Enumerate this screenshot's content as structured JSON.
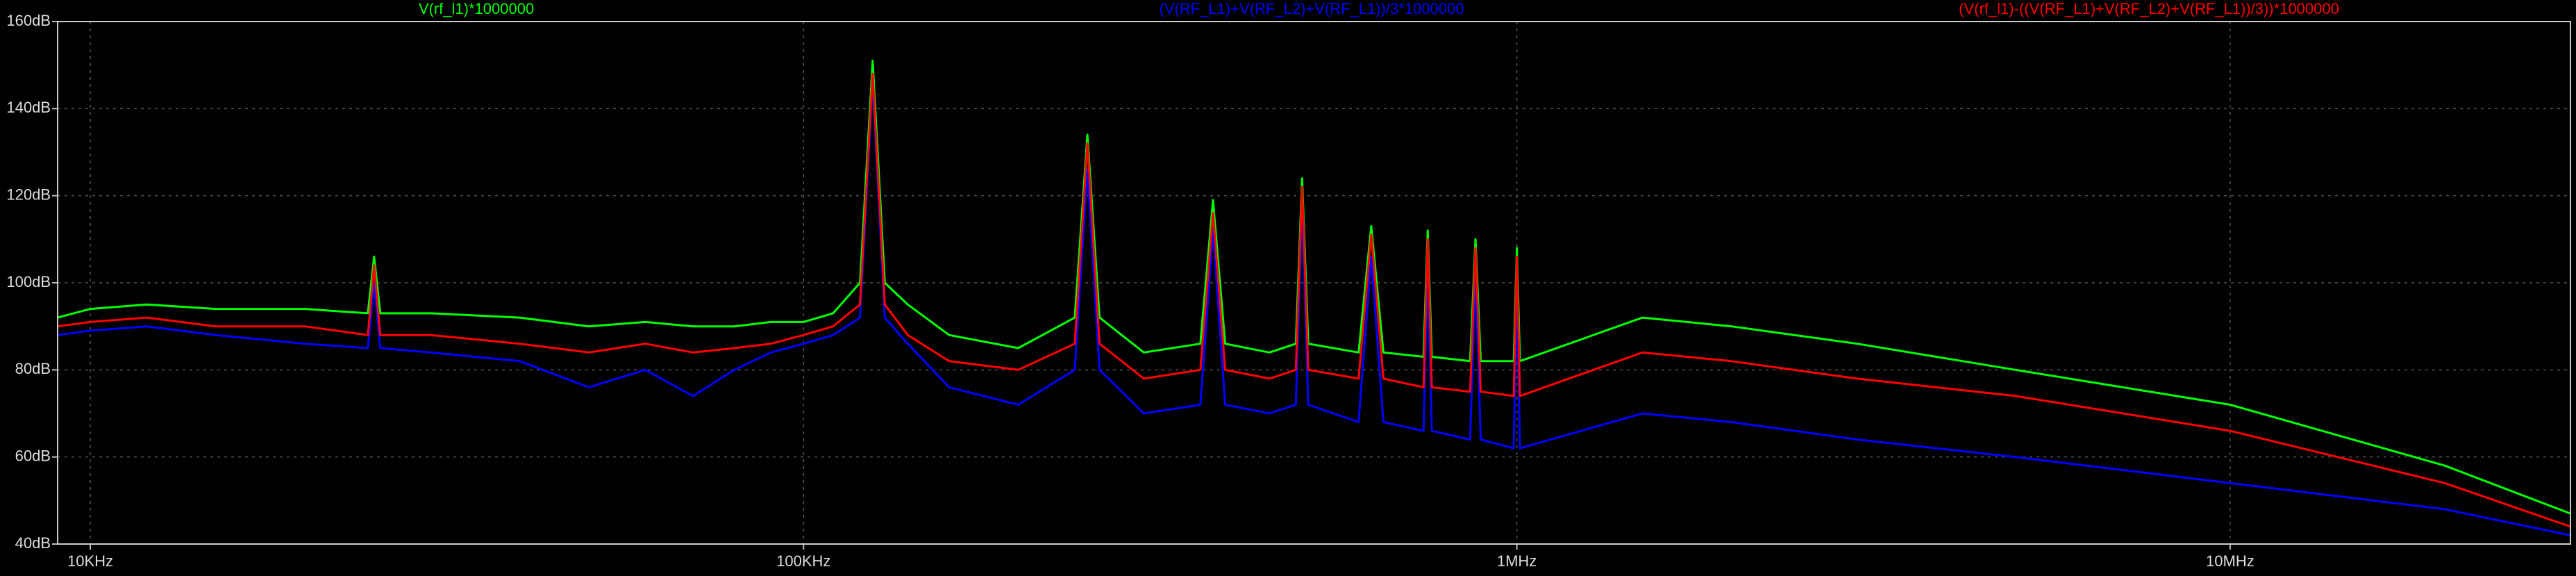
{
  "chart_data": {
    "type": "line",
    "log_x": true,
    "grid": true,
    "xlim": [
      9000,
      30000000
    ],
    "ylim": [
      40,
      160
    ],
    "xticks": [
      {
        "value": 10000,
        "label": "10KHz"
      },
      {
        "value": 100000,
        "label": "100KHz"
      },
      {
        "value": 1000000,
        "label": "1MHz"
      },
      {
        "value": 10000000,
        "label": "10MHz"
      }
    ],
    "yticks": [
      {
        "value": 40,
        "label": "40dB"
      },
      {
        "value": 60,
        "label": "60dB"
      },
      {
        "value": 80,
        "label": "80dB"
      },
      {
        "value": 100,
        "label": "100dB"
      },
      {
        "value": 120,
        "label": "120dB"
      },
      {
        "value": 140,
        "label": "140dB"
      },
      {
        "value": 160,
        "label": "160dB"
      }
    ],
    "x": [
      9000,
      10000,
      12000,
      15000,
      20000,
      24500,
      25000,
      25500,
      30000,
      40000,
      50000,
      60000,
      70000,
      80000,
      90000,
      100000,
      110000,
      120000,
      125000,
      130000,
      140000,
      160000,
      200000,
      240000,
      250000,
      260000,
      300000,
      360000,
      375000,
      390000,
      450000,
      490000,
      500000,
      510000,
      600000,
      625000,
      650000,
      740000,
      750000,
      760000,
      860000,
      875000,
      890000,
      990000,
      1000000,
      1010000,
      1500000,
      2000000,
      3000000,
      5000000,
      10000000,
      20000000,
      30000000
    ],
    "series": [
      {
        "name": "V(rf_l1)*1000000",
        "color": "#00ff00",
        "values": [
          92,
          94,
          95,
          94,
          94,
          93,
          106,
          93,
          93,
          92,
          90,
          91,
          90,
          90,
          91,
          91,
          93,
          100,
          151,
          100,
          95,
          88,
          85,
          92,
          134,
          92,
          84,
          86,
          119,
          86,
          84,
          86,
          124,
          86,
          84,
          113,
          84,
          83,
          112,
          83,
          82,
          110,
          82,
          82,
          108,
          82,
          92,
          90,
          86,
          80,
          72,
          58,
          47
        ]
      },
      {
        "name": "(V(RF_L1)+V(RF_L2)+V(RF_L1))/3*1000000",
        "color": "#0000ff",
        "values": [
          88,
          89,
          90,
          88,
          86,
          85,
          100,
          85,
          84,
          82,
          76,
          80,
          74,
          80,
          84,
          86,
          88,
          92,
          146,
          92,
          86,
          76,
          72,
          80,
          126,
          80,
          70,
          72,
          112,
          72,
          70,
          72,
          118,
          72,
          68,
          106,
          68,
          66,
          104,
          66,
          64,
          102,
          64,
          62,
          100,
          62,
          70,
          68,
          64,
          60,
          54,
          48,
          42
        ]
      },
      {
        "name": "(V(rf_l1)-((V(RF_L1)+V(RF_L2)+V(RF_L1))/3))*1000000",
        "color": "#ff0000",
        "values": [
          90,
          91,
          92,
          90,
          90,
          88,
          104,
          88,
          88,
          86,
          84,
          86,
          84,
          85,
          86,
          88,
          90,
          95,
          148,
          95,
          88,
          82,
          80,
          86,
          132,
          86,
          78,
          80,
          116,
          80,
          78,
          80,
          122,
          80,
          78,
          111,
          78,
          76,
          110,
          76,
          75,
          108,
          75,
          74,
          106,
          74,
          84,
          82,
          78,
          74,
          66,
          54,
          44
        ]
      }
    ]
  }
}
